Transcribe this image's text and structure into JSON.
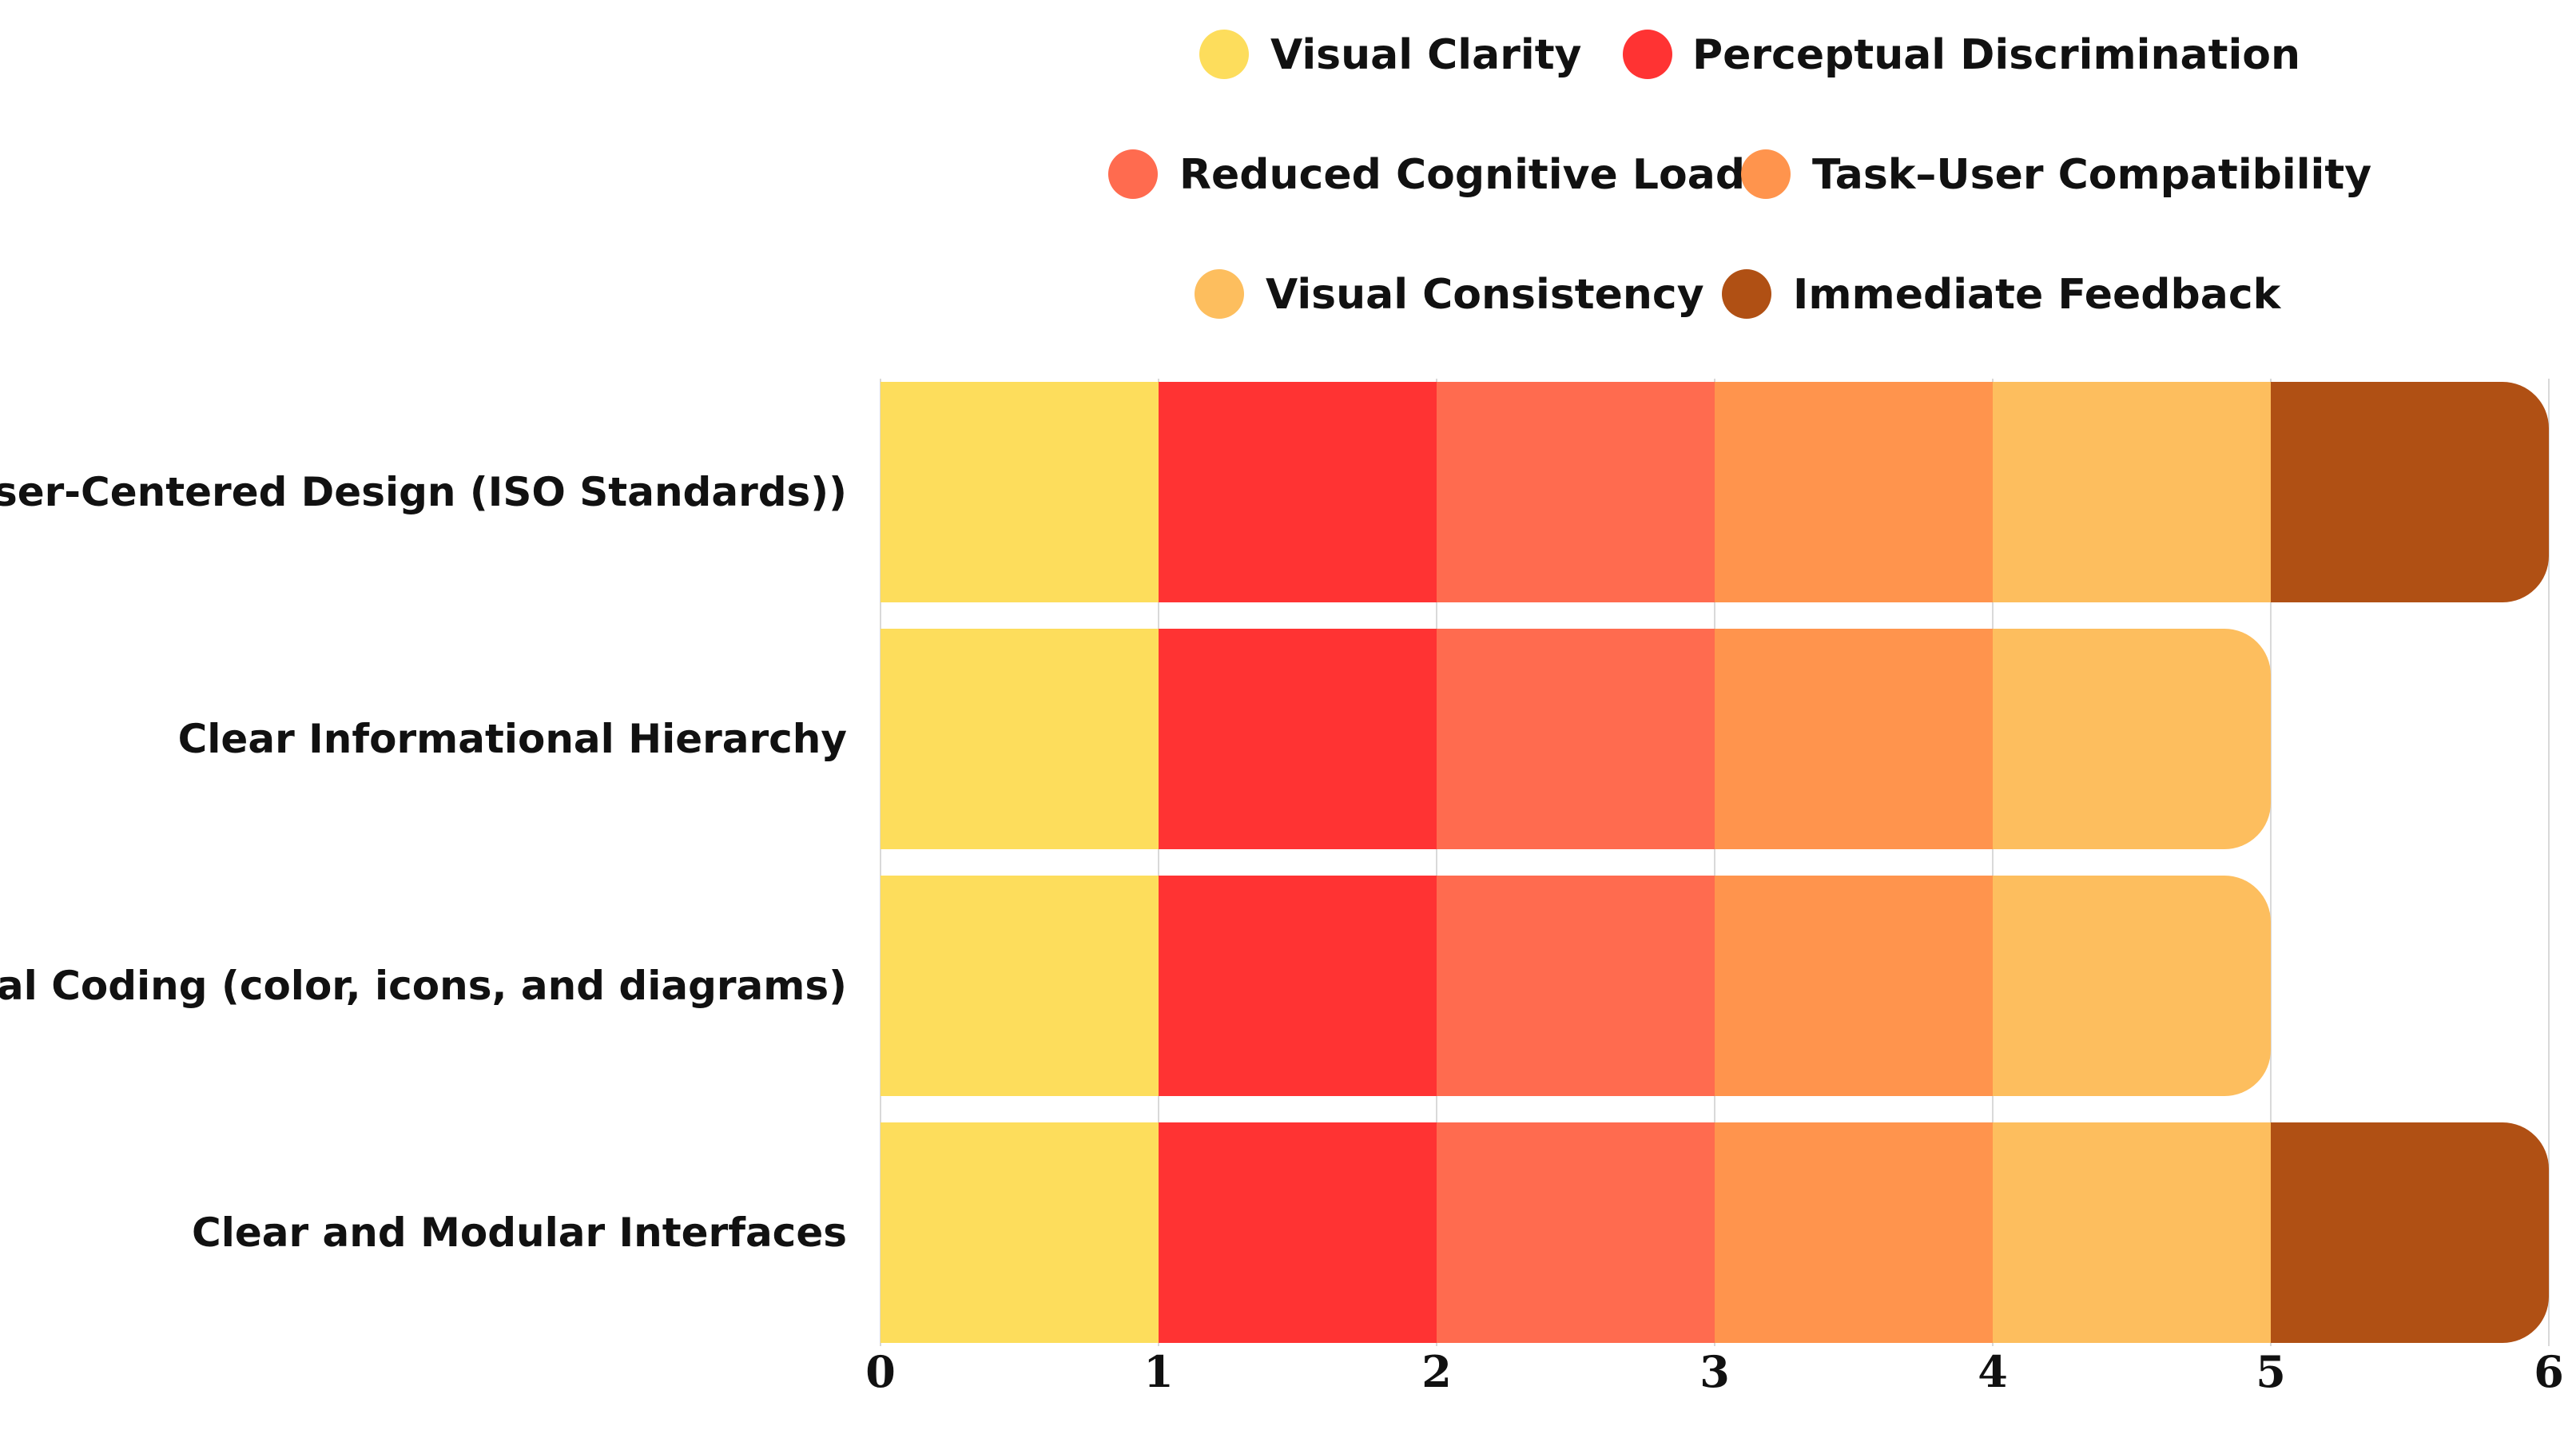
{
  "chart_data": {
    "type": "bar",
    "orientation": "horizontal",
    "stacked": true,
    "title": "",
    "xlabel": "",
    "ylabel": "",
    "xlim": [
      0,
      6
    ],
    "x_ticks": [
      "0",
      "1",
      "2",
      "3",
      "4",
      "5",
      "6"
    ],
    "grid": true,
    "legend_position": "top",
    "categories": [
      "User-Centered Design (ISO Standards))",
      "Clear Informational Hierarchy",
      "Visual Coding (color, icons, and diagrams)",
      "Clear and Modular Interfaces"
    ],
    "series": [
      {
        "name": "Visual Clarity",
        "color": "#FDDD5C",
        "values": [
          1,
          1,
          1,
          1
        ]
      },
      {
        "name": "Perceptual Discrimination",
        "color": "#FF3333",
        "values": [
          1,
          1,
          1,
          1
        ]
      },
      {
        "name": "Reduced Cognitive Load",
        "color": "#FF6B4F",
        "values": [
          1,
          1,
          1,
          1
        ]
      },
      {
        "name": "Task–User Compatibility",
        "color": "#FF944D",
        "values": [
          1,
          1,
          1,
          1
        ]
      },
      {
        "name": "Visual Consistency",
        "color": "#FDBE5E",
        "values": [
          1,
          1,
          1,
          1
        ]
      },
      {
        "name": "Immediate Feedback",
        "color": "#B05014",
        "values": [
          1,
          0,
          0,
          1
        ]
      }
    ]
  }
}
